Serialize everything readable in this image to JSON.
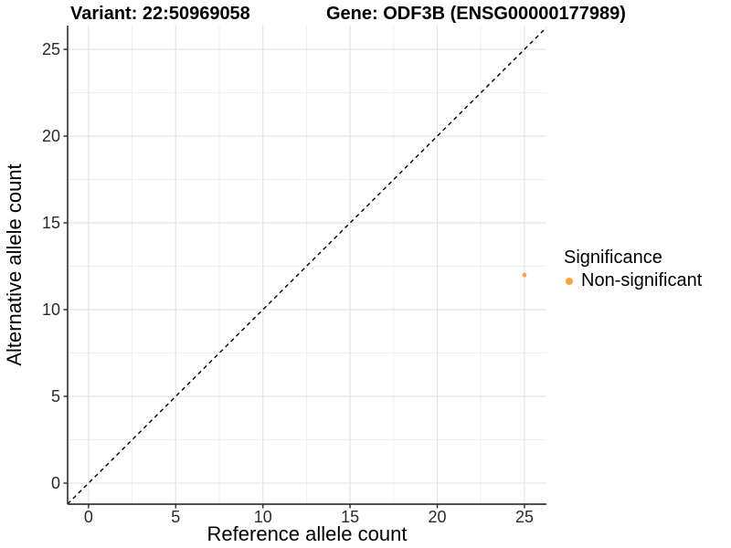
{
  "titles": {
    "variant": "Variant: 22:50969058",
    "gene": "Gene: ODF3B (ENSG00000177989)"
  },
  "chart_data": {
    "type": "scatter",
    "title_left": "Variant: 22:50969058",
    "title_right": "Gene: ODF3B (ENSG00000177989)",
    "xlabel": "Reference allele count",
    "ylabel": "Alternative allele count",
    "xlim": [
      -1.2,
      26.26
    ],
    "ylim": [
      -1.21,
      26.37
    ],
    "xticks": [
      0,
      5,
      10,
      15,
      20,
      25
    ],
    "yticks": [
      0,
      5,
      10,
      15,
      20,
      25
    ],
    "minor_step": 2.5,
    "grid": true,
    "background": "#ffffff",
    "grid_major_color": "#e2e2e2",
    "grid_minor_color": "#efefef",
    "axis_line_color": "#3a3a3a",
    "identity_line": {
      "type": "y=x",
      "style": "dashed",
      "color": "#000000"
    },
    "series": [
      {
        "name": "Non-significant",
        "color": "#FAA43A",
        "points": [
          {
            "x": 25,
            "y": 12
          }
        ],
        "point_radius": 2.4
      }
    ],
    "legend": {
      "title": "Significance",
      "position": "right",
      "entries": [
        {
          "label": "Non-significant",
          "color": "#FAA43A"
        }
      ]
    }
  },
  "legend": {
    "title": "Significance",
    "items": [
      {
        "label": "Non-significant",
        "color": "#FAA43A"
      }
    ]
  }
}
